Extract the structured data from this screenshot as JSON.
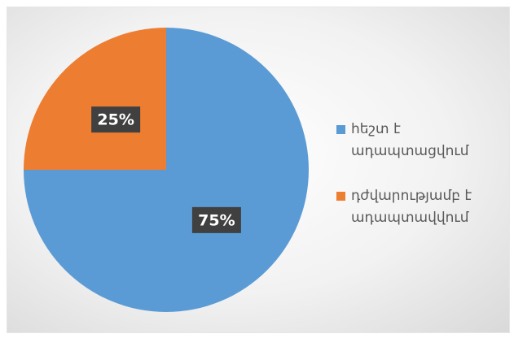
{
  "chart_data": {
    "type": "pie",
    "categories": [
      "հեշտ է ադապտացվում",
      "դժվարությամբ է ադապտավվում"
    ],
    "values": [
      75,
      25
    ],
    "value_labels": [
      "75%",
      "25%"
    ],
    "colors": [
      "#5b9bd5",
      "#ed7d31"
    ]
  }
}
